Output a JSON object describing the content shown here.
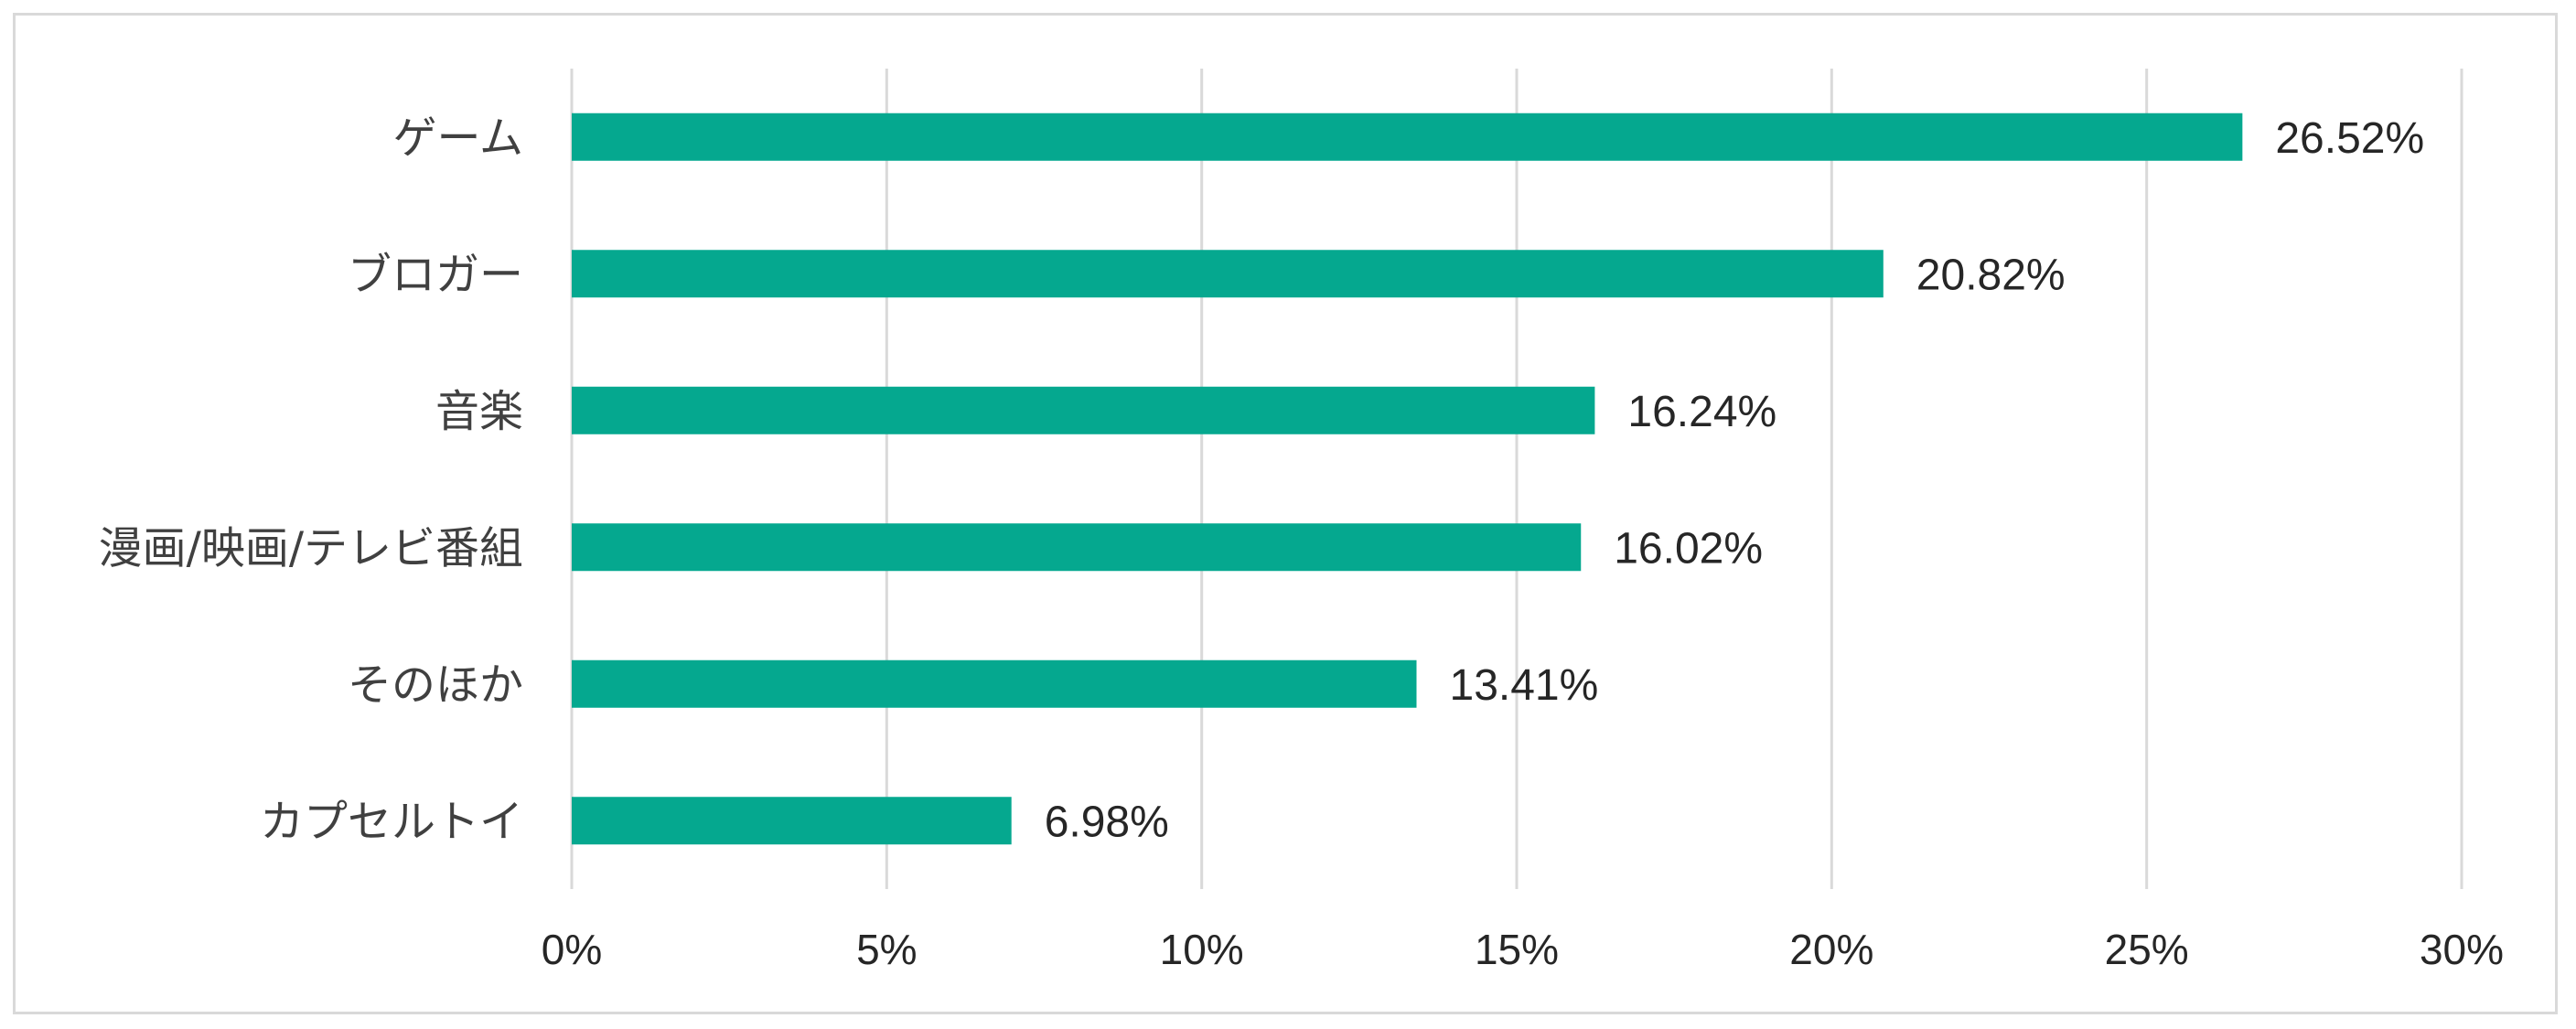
{
  "chart_data": {
    "type": "bar",
    "orientation": "horizontal",
    "categories": [
      "ゲーム",
      "ブロガー",
      "音楽",
      "漫画/映画/テレビ番組",
      "そのほか",
      "カプセルトイ"
    ],
    "values": [
      26.52,
      20.82,
      16.24,
      16.02,
      13.41,
      6.98
    ],
    "value_labels": [
      "26.52%",
      "20.82%",
      "16.24%",
      "16.02%",
      "13.41%",
      "6.98%"
    ],
    "xlim": [
      0,
      30
    ],
    "xticks": [
      0,
      5,
      10,
      15,
      20,
      25,
      30
    ],
    "xtick_labels": [
      "0%",
      "5%",
      "10%",
      "15%",
      "20%",
      "25%",
      "30%"
    ],
    "grid": "vertical",
    "legend": "none",
    "colors": {
      "bar": "#05A88F"
    }
  }
}
